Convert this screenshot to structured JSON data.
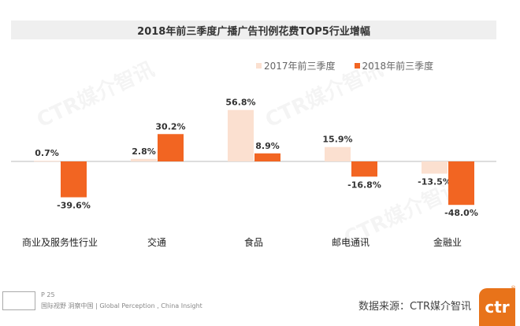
{
  "chart_data": {
    "type": "bar",
    "title": "2018年前三季度广播广告刊例花费TOP5行业增幅",
    "categories": [
      "商业及服务性行业",
      "交通",
      "食品",
      "邮电通讯",
      "金融业"
    ],
    "series": [
      {
        "name": "2017年前三季度",
        "values": [
          0.7,
          2.8,
          56.8,
          15.9,
          -13.5
        ],
        "labels": [
          "0.7%",
          "2.8%",
          "56.8%",
          "15.9%",
          "-13.5%"
        ],
        "color": "#fbe0d0"
      },
      {
        "name": "2018年前三季度",
        "values": [
          -39.6,
          30.2,
          8.9,
          -16.8,
          -48.0
        ],
        "labels": [
          "-39.6%",
          "30.2%",
          "8.9%",
          "-16.8%",
          "-48.0%"
        ],
        "color": "#f26522"
      }
    ],
    "unit": "%",
    "legend": "top-right",
    "grid": false
  },
  "footer": {
    "page": "P 25",
    "slogan": "国际视野  洞察中国 |  Global Perception , China Insight",
    "source": "数据来源：CTR媒介智讯",
    "logo_text": "ctr",
    "watermark": "CTR媒介智讯"
  }
}
